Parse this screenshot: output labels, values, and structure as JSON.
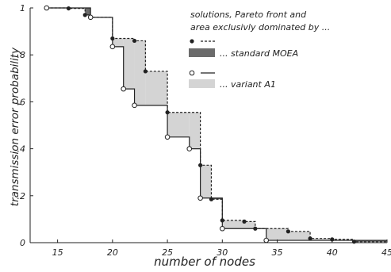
{
  "chart_data": {
    "type": "line",
    "xlabel": "number of nodes",
    "ylabel": "transmission error probability",
    "xlim": [
      12.5,
      45
    ],
    "ylim": [
      0,
      1
    ],
    "x_ticks": [
      {
        "value": 15,
        "label": "15"
      },
      {
        "value": 20,
        "label": "20"
      },
      {
        "value": 25,
        "label": "25"
      },
      {
        "value": 30,
        "label": "30"
      },
      {
        "value": 35,
        "label": "35"
      },
      {
        "value": 40,
        "label": "40"
      },
      {
        "value": 45,
        "label": "45"
      }
    ],
    "y_ticks": [
      {
        "value": 0,
        "label": "0"
      },
      {
        "value": 0.2,
        "label": ".2"
      },
      {
        "value": 0.4,
        "label": ".4"
      },
      {
        "value": 0.6,
        "label": ".6"
      },
      {
        "value": 0.8,
        "label": ".8"
      },
      {
        "value": 1,
        "label": "1"
      }
    ],
    "grid": false,
    "legend": {
      "title_line1": "solutions, Pareto front and",
      "title_line2": "area exclusivly dominated by ...",
      "entries": [
        "... standard MOEA",
        "... variant A1"
      ],
      "placement": "top-right"
    },
    "series": [
      {
        "style": "dashed",
        "marker": "filled",
        "points": [
          [
            14,
            1.0
          ],
          [
            16,
            0.998
          ],
          [
            17.5,
            0.97
          ],
          [
            18,
            0.96
          ],
          [
            20,
            0.87
          ],
          [
            22,
            0.86
          ],
          [
            23,
            0.73
          ],
          [
            25,
            0.555
          ],
          [
            28,
            0.33
          ],
          [
            29,
            0.185
          ],
          [
            30,
            0.095
          ],
          [
            32,
            0.09
          ],
          [
            33,
            0.06
          ],
          [
            36,
            0.048
          ],
          [
            38,
            0.018
          ],
          [
            40,
            0.014
          ],
          [
            42,
            0.004
          ]
        ]
      },
      {
        "style": "solid",
        "marker": "open",
        "points": [
          [
            14,
            1.0
          ],
          [
            18,
            0.96
          ],
          [
            20,
            0.835
          ],
          [
            21,
            0.655
          ],
          [
            22,
            0.585
          ],
          [
            25,
            0.45
          ],
          [
            27,
            0.4
          ],
          [
            28,
            0.19
          ],
          [
            30,
            0.06
          ],
          [
            34,
            0.01
          ]
        ]
      }
    ],
    "colors": {
      "standard_area": "#6b6b6b",
      "variant_area": "#d4d4d4",
      "line": "#222222"
    }
  }
}
